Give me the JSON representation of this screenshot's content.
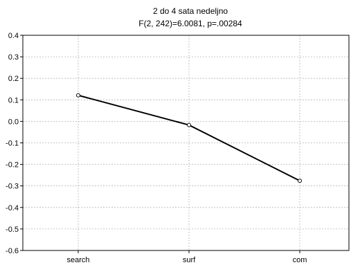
{
  "chart_data": {
    "type": "line",
    "title": "2 do 4 sata nedeljno",
    "subtitle": "F(2, 242)=6.0081, p=.00284",
    "xlabel": "",
    "ylabel": "",
    "categories": [
      "search",
      "surf",
      "com"
    ],
    "series": [
      {
        "values": [
          0.121,
          -0.017,
          -0.276
        ]
      }
    ],
    "ylim": [
      -0.6,
      0.4
    ],
    "yticks": [
      0.4,
      0.3,
      0.2,
      0.1,
      0.0,
      -0.1,
      -0.2,
      -0.3,
      -0.4,
      -0.5,
      -0.6
    ],
    "ytick_labels": [
      "0.4",
      "0.3",
      "0.2",
      "0.1",
      "0.0",
      "-0.1",
      "-0.2",
      "-0.3",
      "-0.4",
      "-0.5",
      "-0.6"
    ],
    "grid": true,
    "legend": "none",
    "colors": {
      "line": "#000000",
      "grid": "#b4b4b4",
      "marker_fill": "#ffffff"
    }
  }
}
